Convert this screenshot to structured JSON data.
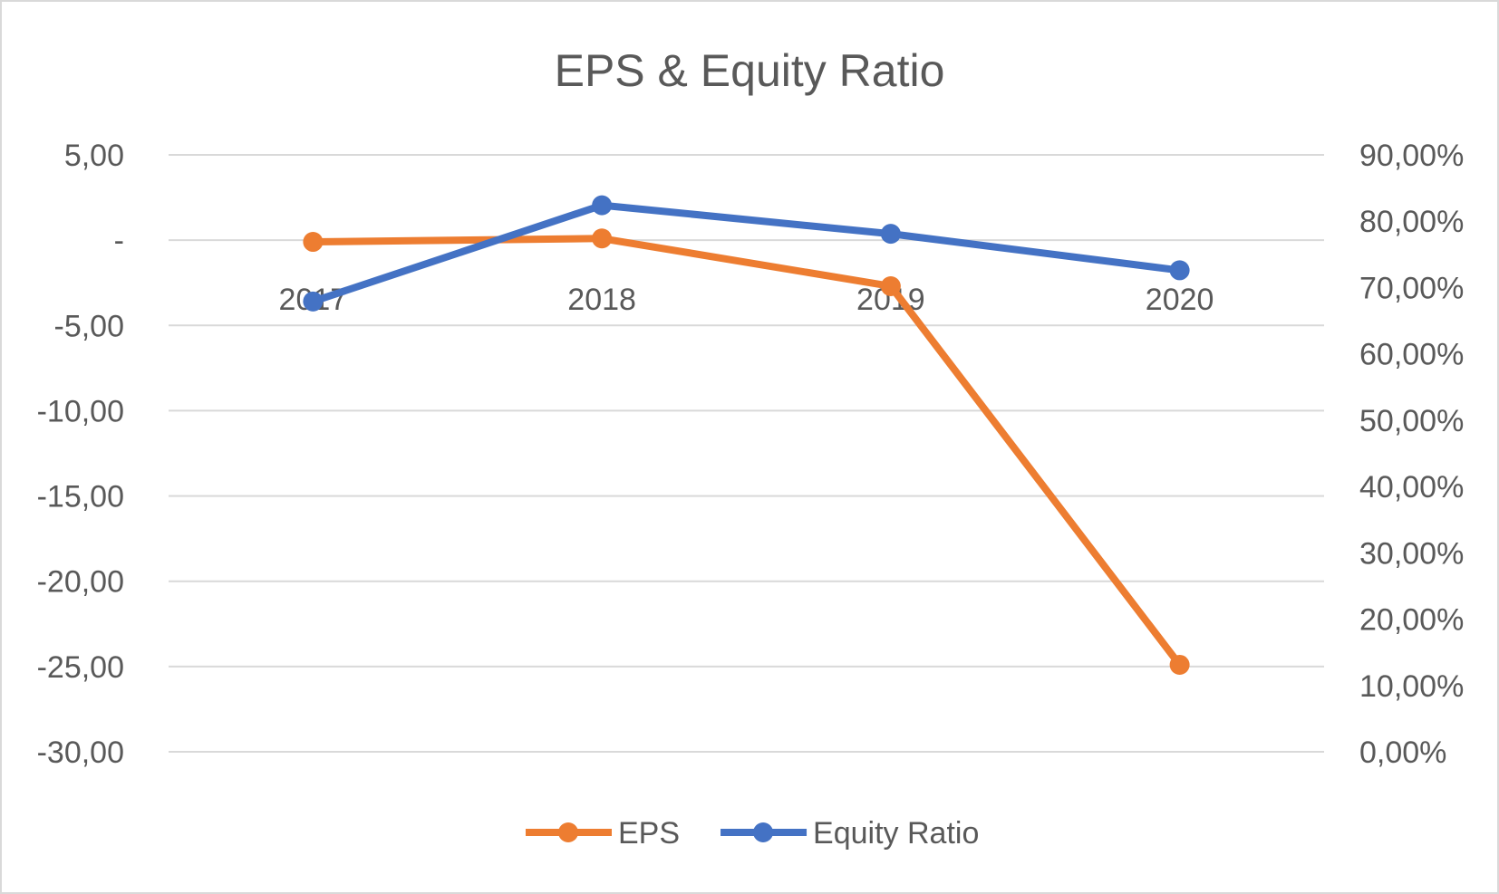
{
  "chart_data": {
    "type": "line",
    "title": "EPS & Equity Ratio",
    "categories": [
      "2017",
      "2018",
      "2019",
      "2020"
    ],
    "series": [
      {
        "name": "EPS",
        "axis": "left",
        "color": "#ED7D31",
        "values": [
          -0.1,
          0.1,
          -2.7,
          -24.9
        ]
      },
      {
        "name": "Equity Ratio",
        "axis": "right",
        "color": "#4472C4",
        "values": [
          0.679,
          0.824,
          0.781,
          0.726
        ]
      }
    ],
    "y_left": {
      "ylim": [
        -30,
        5
      ],
      "ticks": [
        5,
        0,
        -5,
        -10,
        -15,
        -20,
        -25,
        -30
      ],
      "tick_labels": [
        "5,00",
        "-",
        "-5,00",
        "-10,00",
        "-15,00",
        "-20,00",
        "-25,00",
        "-30,00"
      ]
    },
    "y_right": {
      "ylim": [
        0,
        0.9
      ],
      "ticks": [
        0.9,
        0.8,
        0.7,
        0.6,
        0.5,
        0.4,
        0.3,
        0.2,
        0.1,
        0
      ],
      "tick_labels": [
        "90,00%",
        "80,00%",
        "70,00%",
        "60,00%",
        "50,00%",
        "40,00%",
        "30,00%",
        "20,00%",
        "10,00%",
        "0,00%"
      ]
    },
    "grid": true,
    "legend": "bottom",
    "xlabel": "",
    "ylabel": ""
  }
}
